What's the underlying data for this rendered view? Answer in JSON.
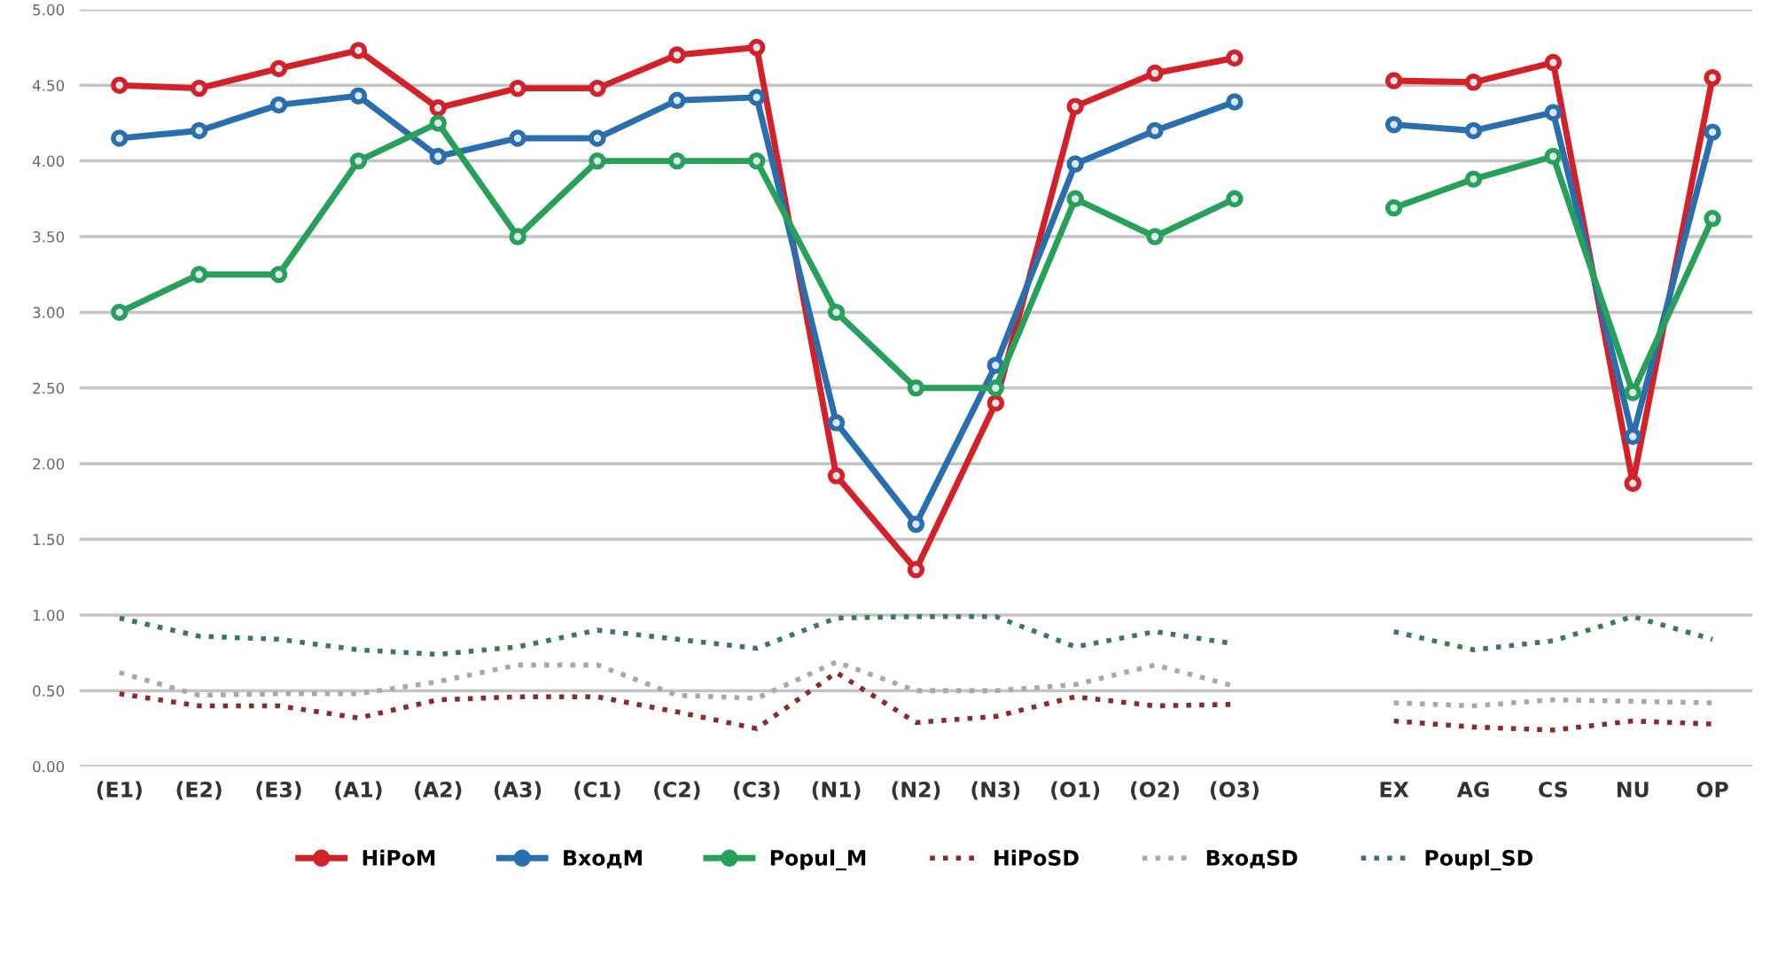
{
  "chart_data": {
    "type": "line",
    "categories": [
      "(E1)",
      "(E2)",
      "(E3)",
      "(A1)",
      "(A2)",
      "(A3)",
      "(C1)",
      "(C2)",
      "(C3)",
      "(N1)",
      "(N2)",
      "(N3)",
      "(O1)",
      "(O2)",
      "(O3)",
      null,
      "EX",
      "AG",
      "CS",
      "NU",
      "OP"
    ],
    "series": [
      {
        "name": "HiPoM",
        "color": "#d42028",
        "marker": "circle",
        "line_style": "solid",
        "values": [
          4.5,
          4.48,
          4.61,
          4.73,
          4.35,
          4.48,
          4.48,
          4.7,
          4.75,
          1.92,
          1.3,
          2.4,
          4.36,
          4.58,
          4.68,
          null,
          4.53,
          4.52,
          4.65,
          1.87,
          4.55
        ]
      },
      {
        "name": "ВходM",
        "color": "#2a6fad",
        "marker": "circle",
        "line_style": "solid",
        "values": [
          4.15,
          4.2,
          4.37,
          4.43,
          4.03,
          4.15,
          4.15,
          4.4,
          4.42,
          2.27,
          1.6,
          2.65,
          3.98,
          4.2,
          4.39,
          null,
          4.24,
          4.2,
          4.32,
          2.18,
          4.19
        ]
      },
      {
        "name": "Popul_M",
        "color": "#27a05a",
        "marker": "circle",
        "line_style": "solid",
        "values": [
          3.0,
          3.25,
          3.25,
          4.0,
          4.25,
          3.5,
          4.0,
          4.0,
          4.0,
          3.0,
          2.5,
          2.5,
          3.75,
          3.5,
          3.75,
          null,
          3.69,
          3.88,
          4.03,
          2.47,
          3.62
        ]
      },
      {
        "name": "HiPoSD",
        "color": "#8b2a2a",
        "marker": "none",
        "line_style": "dotted",
        "values": [
          0.48,
          0.4,
          0.4,
          0.32,
          0.44,
          0.46,
          0.46,
          0.36,
          0.25,
          0.62,
          0.29,
          0.33,
          0.46,
          0.4,
          0.41,
          null,
          0.3,
          0.26,
          0.24,
          0.3,
          0.28
        ]
      },
      {
        "name": "ВходSD",
        "color": "#a8a8a8",
        "marker": "none",
        "line_style": "dotted",
        "values": [
          0.62,
          0.47,
          0.48,
          0.48,
          0.56,
          0.67,
          0.67,
          0.47,
          0.45,
          0.69,
          0.5,
          0.5,
          0.54,
          0.67,
          0.53,
          null,
          0.42,
          0.4,
          0.44,
          0.43,
          0.42
        ]
      },
      {
        "name": "Poupl_SD",
        "color": "#3a7a55",
        "marker": "none",
        "line_style": "dotted",
        "values": [
          0.98,
          0.86,
          0.84,
          0.77,
          0.74,
          0.79,
          0.9,
          0.84,
          0.78,
          0.98,
          0.99,
          0.99,
          0.79,
          0.89,
          0.81,
          null,
          0.89,
          0.77,
          0.83,
          0.99,
          0.84
        ]
      }
    ],
    "ylim": [
      0,
      5
    ],
    "yticks": [
      {
        "value": 0,
        "label": "0.00"
      },
      {
        "value": 0.5,
        "label": "0.50"
      },
      {
        "value": 1,
        "label": "1.00"
      },
      {
        "value": 1.5,
        "label": "1.50"
      },
      {
        "value": 2,
        "label": "2.00"
      },
      {
        "value": 2.5,
        "label": "2.50"
      },
      {
        "value": 3,
        "label": "3.00"
      },
      {
        "value": 3.5,
        "label": "3.50"
      },
      {
        "value": 4,
        "label": "4.00"
      },
      {
        "value": 4.5,
        "label": "4.50"
      },
      {
        "value": 5,
        "label": "5.00"
      }
    ],
    "grid": "y",
    "legend": "bottom"
  }
}
